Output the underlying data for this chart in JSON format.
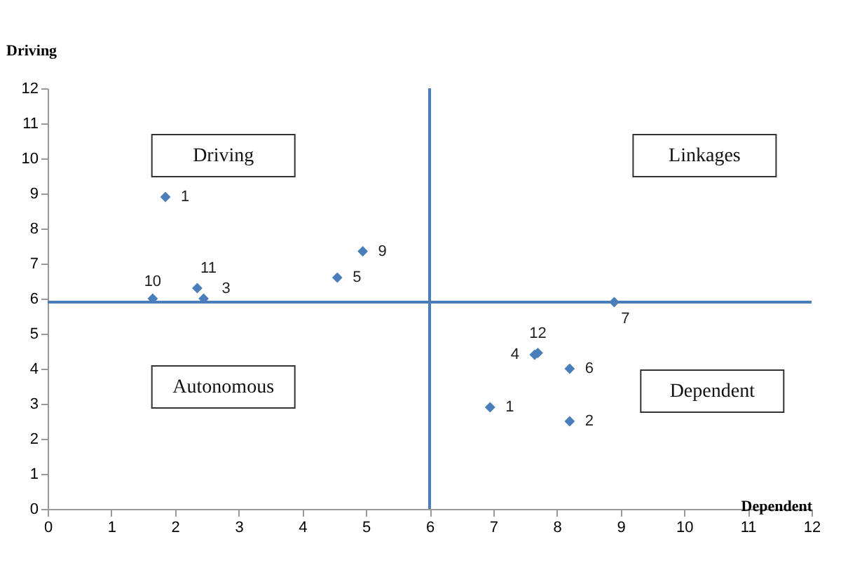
{
  "chart_data": {
    "type": "scatter",
    "xlabel": "Dependent",
    "ylabel": "Driving",
    "x": [
      1.85,
      1.65,
      2.35,
      2.45,
      4.55,
      4.95,
      8.9,
      7.7,
      7.65,
      8.2,
      6.95,
      8.2
    ],
    "series": [
      {
        "color": "#4a7ebb",
        "values": [
          8.9,
          6.0,
          6.3,
          6.0,
          6.6,
          7.35,
          5.9,
          4.45,
          4.4,
          4.0,
          2.9,
          2.5
        ]
      }
    ],
    "value_labels": [
      "1",
      "10",
      "11",
      "3",
      "5",
      "9",
      "7",
      "12",
      "4",
      "6",
      "1",
      "2"
    ],
    "xlim": [
      0,
      12
    ],
    "ylim": [
      0,
      12
    ],
    "xticks": [
      0,
      1,
      2,
      3,
      4,
      5,
      6,
      7,
      8,
      9,
      10,
      11,
      12
    ],
    "yticks": [
      0,
      1,
      2,
      3,
      4,
      5,
      6,
      7,
      8,
      9,
      10,
      11,
      12
    ],
    "ref_lines": [
      {
        "axis": "x",
        "value": 6,
        "color": "#4a7ebb"
      },
      {
        "axis": "y",
        "value": 5.9,
        "color": "#4a7ebb"
      }
    ],
    "annotations": [
      "Driving",
      "Linkages",
      "Autonomous",
      "Dependent"
    ],
    "marker": "diamond",
    "grid": false
  }
}
